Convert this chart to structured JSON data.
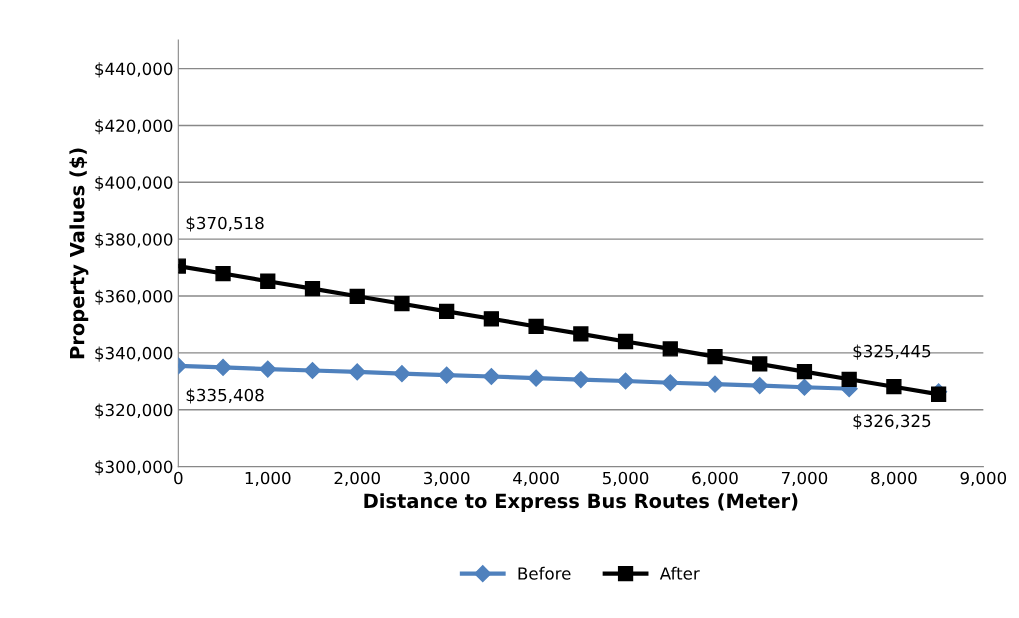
{
  "chart_data": {
    "type": "line",
    "xlabel": "Distance to Express Bus Routes (Meter)",
    "ylabel": "Property Values ($)",
    "x": [
      0,
      500,
      1000,
      1500,
      2000,
      2500,
      3000,
      3500,
      4000,
      4500,
      5000,
      5500,
      6000,
      6500,
      7000,
      7500,
      8000,
      8500
    ],
    "series": [
      {
        "name": "Before",
        "color": "#4f81bd",
        "marker": "diamond",
        "values": [
          335408,
          334900,
          334300,
          333800,
          333300,
          332700,
          332200,
          331700,
          331100,
          330600,
          330100,
          329500,
          329000,
          328500,
          327900,
          327400,
          null,
          326325
        ],
        "value_labels": [
          "$335,408",
          null,
          null,
          null,
          null,
          null,
          null,
          null,
          null,
          null,
          null,
          null,
          null,
          null,
          null,
          null,
          null,
          "$326,325"
        ]
      },
      {
        "name": "After",
        "color": "#000000",
        "marker": "square",
        "values": [
          370518,
          367900,
          365200,
          362600,
          359900,
          357300,
          354600,
          352000,
          349300,
          346700,
          344000,
          341400,
          338700,
          336100,
          333400,
          330700,
          328100,
          325445
        ],
        "value_labels": [
          "$370,518",
          null,
          null,
          null,
          null,
          null,
          null,
          null,
          null,
          null,
          null,
          null,
          null,
          null,
          null,
          null,
          null,
          "$325,445"
        ]
      }
    ],
    "xlim": [
      0,
      9000
    ],
    "xticks": [
      0,
      {
        "value": 1000,
        "label": "1,000"
      },
      {
        "value": 2000,
        "label": "2,000"
      },
      {
        "value": 3000,
        "label": "3,000"
      },
      {
        "value": 4000,
        "label": "4,000"
      },
      {
        "value": 5000,
        "label": "5,000"
      },
      {
        "value": 6000,
        "label": "6,000"
      },
      {
        "value": 7000,
        "label": "7,000"
      },
      {
        "value": 8000,
        "label": "8,000"
      },
      {
        "value": 9000,
        "label": "9,000"
      }
    ],
    "ylim": [
      300000,
      450000
    ],
    "yticks": [
      {
        "value": 300000,
        "label": "$300,000"
      },
      {
        "value": 320000,
        "label": "$320,000"
      },
      {
        "value": 340000,
        "label": "$340,000"
      },
      {
        "value": 360000,
        "label": "$360,000"
      },
      {
        "value": 380000,
        "label": "$380,000"
      },
      {
        "value": 400000,
        "label": "$400,000"
      },
      {
        "value": 420000,
        "label": "$420,000"
      },
      {
        "value": 440000,
        "label": "$440,000"
      }
    ],
    "grid": "y",
    "legend": "bottom",
    "line_style": "solid"
  }
}
